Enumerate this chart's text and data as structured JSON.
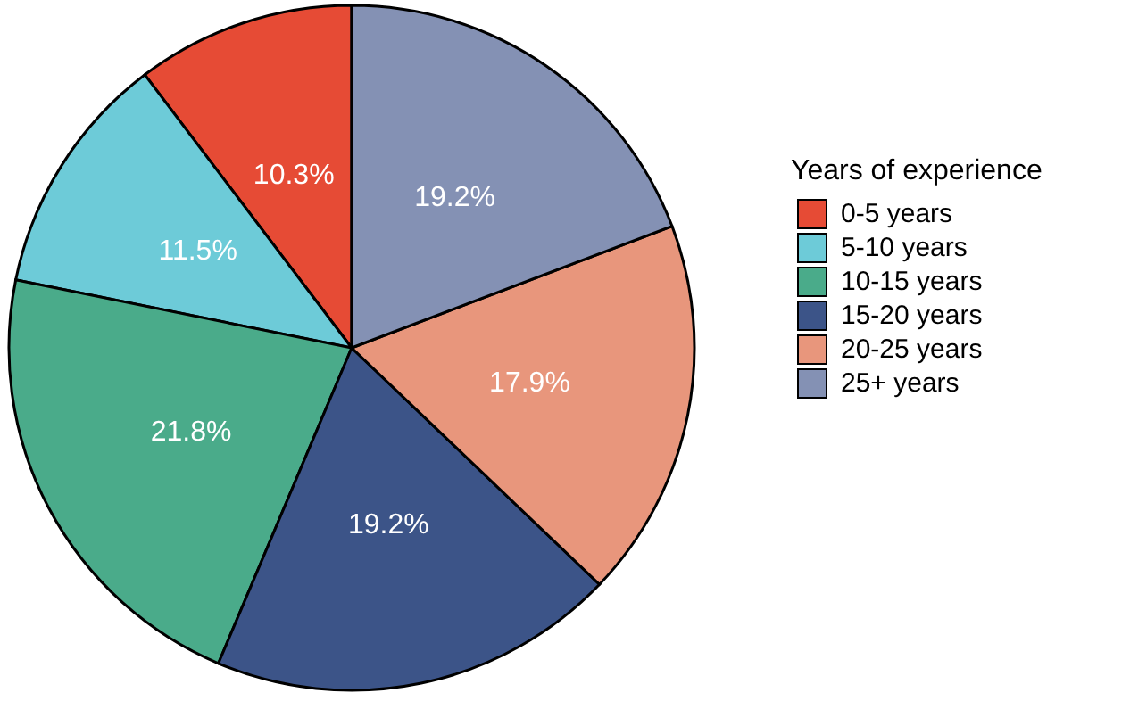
{
  "chart_data": {
    "type": "pie",
    "legend_title": "Years of experience",
    "categories": [
      "0-5 years",
      "5-10 years",
      "10-15 years",
      "15-20 years",
      "20-25 years",
      "25+ years"
    ],
    "values": [
      10.3,
      11.5,
      21.8,
      19.2,
      17.9,
      19.2
    ],
    "value_labels": [
      "10.3%",
      "11.5%",
      "21.8%",
      "19.2%",
      "17.9%",
      "19.2%"
    ],
    "colors": [
      "#e64b35",
      "#6dcbd8",
      "#4aab8a",
      "#3c5488",
      "#e8967c",
      "#8491b4"
    ],
    "legend": "right"
  }
}
